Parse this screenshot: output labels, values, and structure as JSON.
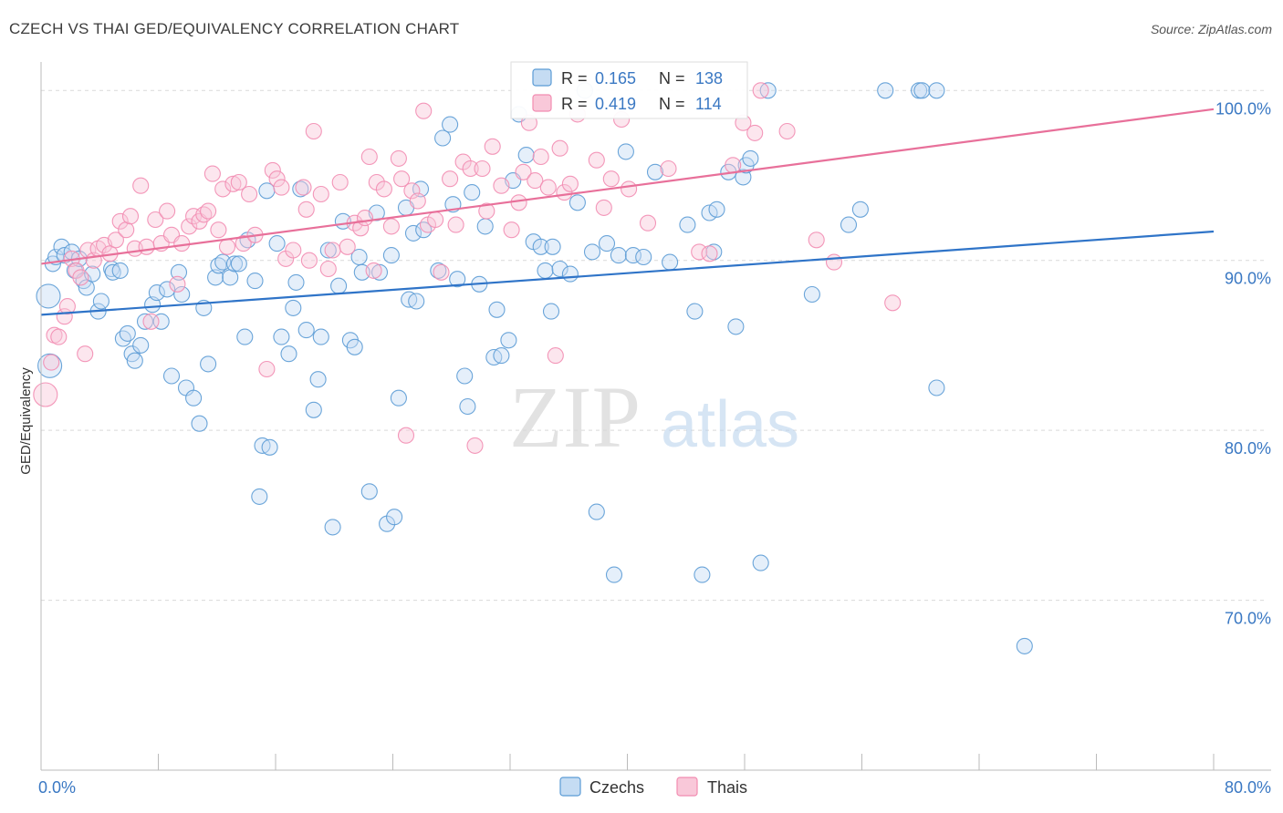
{
  "header": {
    "title": "CZECH VS THAI GED/EQUIVALENCY CORRELATION CHART",
    "source": "Source: ZipAtlas.com"
  },
  "watermark": {
    "zip": "ZIP",
    "atlas": "atlas"
  },
  "legend_top": {
    "rows": [
      {
        "r_label": "R = ",
        "r_value": "0.165",
        "n_label": "N = ",
        "n_value": "138",
        "color": "#5b9bd5"
      },
      {
        "r_label": "R = ",
        "r_value": "0.419",
        "n_label": "N = ",
        "n_value": "114",
        "color": "#f28cb1"
      }
    ]
  },
  "chart_data": {
    "type": "scatter",
    "title": "CZECH VS THAI GED/EQUIVALENCY CORRELATION CHART",
    "ylabel": "GED/Equivalency",
    "xlabel": "",
    "xlim": [
      0,
      80
    ],
    "ylim": [
      60,
      102
    ],
    "x_tick_labels": [
      {
        "value": 0,
        "label": "0.0%"
      },
      {
        "value": 80,
        "label": "80.0%"
      }
    ],
    "y_tick_labels": [
      {
        "value": 100,
        "label": "100.0%"
      },
      {
        "value": 90,
        "label": "90.0%"
      },
      {
        "value": 80,
        "label": "80.0%"
      },
      {
        "value": 70,
        "label": "70.0%"
      }
    ],
    "grid": true,
    "legend_position": "bottom-center",
    "series": [
      {
        "name": "Czechs",
        "color": "#5b9bd5",
        "fill": "#c5dcf3",
        "r": 0.165,
        "n": 138,
        "trend": {
          "x": [
            0,
            80
          ],
          "y": [
            86.8,
            91.7
          ]
        },
        "points": [
          [
            0.5,
            87.9
          ],
          [
            0.6,
            83.8
          ],
          [
            0.8,
            89.8
          ],
          [
            1.0,
            90.2
          ],
          [
            1.4,
            90.8
          ],
          [
            1.6,
            90.3
          ],
          [
            2.1,
            90.5
          ],
          [
            2.3,
            89.4
          ],
          [
            2.6,
            90.1
          ],
          [
            2.9,
            88.8
          ],
          [
            3.1,
            88.4
          ],
          [
            3.5,
            89.2
          ],
          [
            3.9,
            87.0
          ],
          [
            4.1,
            87.6
          ],
          [
            4.8,
            89.5
          ],
          [
            4.9,
            89.3
          ],
          [
            5.4,
            89.4
          ],
          [
            5.6,
            85.4
          ],
          [
            5.9,
            85.7
          ],
          [
            6.2,
            84.5
          ],
          [
            6.4,
            84.1
          ],
          [
            6.8,
            85.0
          ],
          [
            7.1,
            86.4
          ],
          [
            7.6,
            87.4
          ],
          [
            7.9,
            88.1
          ],
          [
            8.2,
            86.4
          ],
          [
            8.6,
            88.3
          ],
          [
            8.9,
            83.2
          ],
          [
            9.4,
            89.3
          ],
          [
            9.6,
            88.0
          ],
          [
            9.9,
            82.5
          ],
          [
            10.4,
            81.9
          ],
          [
            10.8,
            80.4
          ],
          [
            11.1,
            87.2
          ],
          [
            11.4,
            83.9
          ],
          [
            11.9,
            89.0
          ],
          [
            12.1,
            89.7
          ],
          [
            12.4,
            89.9
          ],
          [
            12.9,
            89.0
          ],
          [
            13.2,
            89.8
          ],
          [
            13.5,
            89.8
          ],
          [
            13.9,
            85.5
          ],
          [
            14.1,
            91.2
          ],
          [
            14.6,
            88.8
          ],
          [
            15.1,
            79.1
          ],
          [
            15.6,
            79.0
          ],
          [
            14.9,
            76.1
          ],
          [
            15.4,
            94.1
          ],
          [
            16.1,
            91.0
          ],
          [
            16.4,
            85.5
          ],
          [
            16.9,
            84.5
          ],
          [
            17.2,
            87.2
          ],
          [
            17.4,
            88.7
          ],
          [
            17.7,
            94.2
          ],
          [
            18.1,
            85.9
          ],
          [
            18.6,
            81.2
          ],
          [
            18.9,
            83.0
          ],
          [
            19.1,
            85.5
          ],
          [
            19.6,
            90.6
          ],
          [
            19.9,
            74.3
          ],
          [
            20.3,
            88.5
          ],
          [
            20.6,
            92.3
          ],
          [
            21.1,
            85.3
          ],
          [
            21.4,
            84.9
          ],
          [
            21.7,
            90.2
          ],
          [
            21.9,
            89.3
          ],
          [
            22.4,
            76.4
          ],
          [
            22.9,
            92.8
          ],
          [
            23.1,
            89.3
          ],
          [
            23.6,
            74.5
          ],
          [
            24.1,
            74.9
          ],
          [
            23.9,
            90.3
          ],
          [
            24.4,
            81.9
          ],
          [
            24.9,
            93.1
          ],
          [
            25.1,
            87.7
          ],
          [
            25.4,
            91.6
          ],
          [
            25.6,
            87.6
          ],
          [
            25.9,
            94.2
          ],
          [
            26.1,
            91.8
          ],
          [
            27.1,
            89.4
          ],
          [
            27.4,
            97.2
          ],
          [
            27.9,
            98.0
          ],
          [
            28.1,
            93.3
          ],
          [
            28.4,
            88.9
          ],
          [
            28.9,
            83.2
          ],
          [
            29.1,
            81.4
          ],
          [
            29.4,
            94.0
          ],
          [
            29.9,
            88.6
          ],
          [
            30.3,
            92.0
          ],
          [
            30.9,
            84.3
          ],
          [
            31.1,
            87.1
          ],
          [
            31.4,
            84.4
          ],
          [
            31.9,
            85.3
          ],
          [
            32.2,
            94.7
          ],
          [
            32.6,
            98.6
          ],
          [
            33.1,
            96.2
          ],
          [
            33.6,
            91.1
          ],
          [
            34.1,
            90.8
          ],
          [
            34.4,
            89.4
          ],
          [
            34.8,
            87.0
          ],
          [
            34.9,
            90.8
          ],
          [
            35.4,
            89.5
          ],
          [
            36.1,
            89.2
          ],
          [
            36.6,
            93.4
          ],
          [
            37.1,
            100.0
          ],
          [
            37.6,
            90.5
          ],
          [
            37.9,
            75.2
          ],
          [
            38.6,
            91.0
          ],
          [
            39.1,
            71.5
          ],
          [
            39.4,
            90.3
          ],
          [
            39.9,
            96.4
          ],
          [
            40.4,
            90.3
          ],
          [
            41.1,
            90.2
          ],
          [
            41.9,
            95.2
          ],
          [
            42.9,
            89.9
          ],
          [
            44.1,
            92.1
          ],
          [
            44.6,
            87.0
          ],
          [
            45.1,
            71.5
          ],
          [
            45.6,
            92.8
          ],
          [
            45.9,
            90.5
          ],
          [
            46.1,
            93.0
          ],
          [
            46.9,
            95.2
          ],
          [
            47.4,
            86.1
          ],
          [
            47.9,
            94.9
          ],
          [
            48.1,
            95.6
          ],
          [
            48.4,
            96.0
          ],
          [
            49.1,
            72.2
          ],
          [
            49.6,
            100.0
          ],
          [
            52.6,
            88.0
          ],
          [
            55.1,
            92.1
          ],
          [
            55.9,
            93.0
          ],
          [
            57.6,
            100.0
          ],
          [
            59.9,
            100.0
          ],
          [
            60.1,
            100.0
          ],
          [
            61.1,
            82.5
          ],
          [
            61.1,
            100.0
          ],
          [
            67.1,
            67.3
          ]
        ]
      },
      {
        "name": "Thais",
        "color": "#f28cb1",
        "fill": "#f9c8d9",
        "r": 0.419,
        "n": 114,
        "trend": {
          "x": [
            0,
            80
          ],
          "y": [
            89.8,
            98.9
          ]
        },
        "points": [
          [
            0.3,
            82.1
          ],
          [
            0.7,
            84.0
          ],
          [
            0.9,
            85.6
          ],
          [
            1.2,
            85.5
          ],
          [
            1.6,
            86.7
          ],
          [
            1.8,
            87.3
          ],
          [
            2.1,
            90.1
          ],
          [
            2.4,
            89.4
          ],
          [
            2.7,
            89.0
          ],
          [
            3.0,
            84.5
          ],
          [
            3.2,
            90.6
          ],
          [
            3.6,
            90.0
          ],
          [
            3.9,
            90.7
          ],
          [
            4.3,
            90.9
          ],
          [
            4.7,
            90.4
          ],
          [
            5.1,
            91.2
          ],
          [
            5.4,
            92.3
          ],
          [
            5.8,
            91.8
          ],
          [
            6.1,
            92.6
          ],
          [
            6.4,
            90.7
          ],
          [
            6.8,
            94.4
          ],
          [
            7.2,
            90.8
          ],
          [
            7.5,
            86.4
          ],
          [
            7.8,
            92.4
          ],
          [
            8.2,
            91.0
          ],
          [
            8.6,
            92.9
          ],
          [
            8.9,
            91.5
          ],
          [
            9.3,
            88.6
          ],
          [
            9.6,
            91.0
          ],
          [
            10.1,
            92.0
          ],
          [
            10.4,
            92.6
          ],
          [
            10.8,
            92.3
          ],
          [
            11.1,
            92.7
          ],
          [
            11.4,
            92.9
          ],
          [
            11.7,
            95.1
          ],
          [
            12.1,
            91.8
          ],
          [
            12.4,
            94.2
          ],
          [
            12.7,
            90.8
          ],
          [
            13.1,
            94.5
          ],
          [
            13.5,
            94.6
          ],
          [
            13.8,
            91.0
          ],
          [
            14.2,
            93.9
          ],
          [
            14.6,
            91.5
          ],
          [
            15.4,
            83.6
          ],
          [
            15.8,
            95.3
          ],
          [
            16.1,
            94.8
          ],
          [
            16.4,
            94.3
          ],
          [
            16.7,
            90.1
          ],
          [
            17.2,
            90.6
          ],
          [
            17.9,
            94.3
          ],
          [
            18.1,
            93.0
          ],
          [
            18.3,
            90.0
          ],
          [
            18.6,
            97.6
          ],
          [
            19.1,
            93.9
          ],
          [
            19.6,
            89.5
          ],
          [
            19.9,
            90.6
          ],
          [
            20.4,
            94.6
          ],
          [
            20.9,
            90.8
          ],
          [
            21.4,
            92.2
          ],
          [
            21.8,
            91.9
          ],
          [
            22.1,
            92.5
          ],
          [
            22.4,
            96.1
          ],
          [
            22.7,
            89.4
          ],
          [
            22.9,
            94.6
          ],
          [
            23.4,
            94.2
          ],
          [
            23.9,
            92.0
          ],
          [
            24.4,
            96.0
          ],
          [
            24.6,
            94.8
          ],
          [
            24.9,
            79.7
          ],
          [
            25.3,
            94.1
          ],
          [
            25.7,
            93.5
          ],
          [
            26.1,
            98.8
          ],
          [
            26.4,
            92.1
          ],
          [
            26.9,
            92.4
          ],
          [
            27.3,
            89.3
          ],
          [
            27.9,
            94.8
          ],
          [
            28.3,
            92.1
          ],
          [
            28.8,
            95.8
          ],
          [
            29.3,
            95.4
          ],
          [
            29.6,
            79.1
          ],
          [
            30.1,
            95.4
          ],
          [
            30.4,
            92.9
          ],
          [
            30.8,
            96.7
          ],
          [
            31.4,
            94.4
          ],
          [
            32.1,
            91.8
          ],
          [
            32.6,
            93.4
          ],
          [
            32.9,
            95.2
          ],
          [
            33.3,
            98.1
          ],
          [
            33.7,
            94.7
          ],
          [
            34.1,
            96.1
          ],
          [
            34.6,
            94.3
          ],
          [
            35.1,
            84.4
          ],
          [
            35.4,
            96.6
          ],
          [
            35.7,
            94.0
          ],
          [
            36.1,
            94.5
          ],
          [
            36.6,
            98.6
          ],
          [
            37.9,
            95.9
          ],
          [
            38.4,
            93.1
          ],
          [
            38.9,
            94.8
          ],
          [
            39.6,
            98.3
          ],
          [
            40.1,
            94.2
          ],
          [
            41.4,
            92.2
          ],
          [
            42.8,
            95.4
          ],
          [
            44.9,
            90.5
          ],
          [
            45.6,
            90.4
          ],
          [
            47.2,
            95.6
          ],
          [
            47.9,
            98.1
          ],
          [
            48.7,
            97.5
          ],
          [
            49.1,
            100.0
          ],
          [
            50.9,
            97.6
          ],
          [
            52.9,
            91.2
          ],
          [
            54.1,
            89.9
          ],
          [
            58.1,
            87.5
          ]
        ]
      }
    ]
  },
  "legend_bottom": {
    "items": [
      {
        "label": "Czechs",
        "color": "#5b9bd5"
      },
      {
        "label": "Thais",
        "color": "#f28cb1"
      }
    ]
  }
}
